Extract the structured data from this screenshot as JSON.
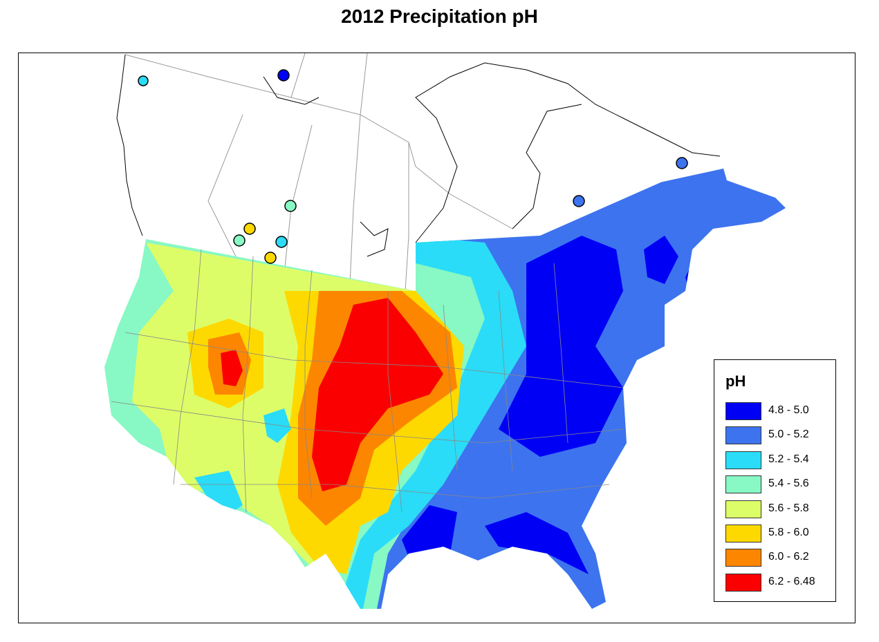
{
  "title": "2012 Precipitation pH",
  "legend": {
    "title": "pH",
    "items": [
      {
        "label": "4.8 - 5.0",
        "color": "#0000f5"
      },
      {
        "label": "5.0 - 5.2",
        "color": "#3d73ef"
      },
      {
        "label": "5.2 - 5.4",
        "color": "#2adcf7"
      },
      {
        "label": "5.4 - 5.6",
        "color": "#88f8c4"
      },
      {
        "label": "5.6 - 5.8",
        "color": "#ddfd68"
      },
      {
        "label": "5.8 - 6.0",
        "color": "#fdd900"
      },
      {
        "label": "6.0 - 6.2",
        "color": "#fd8600"
      },
      {
        "label": "6.2 - 6.48",
        "color": "#fb0000"
      }
    ]
  }
}
